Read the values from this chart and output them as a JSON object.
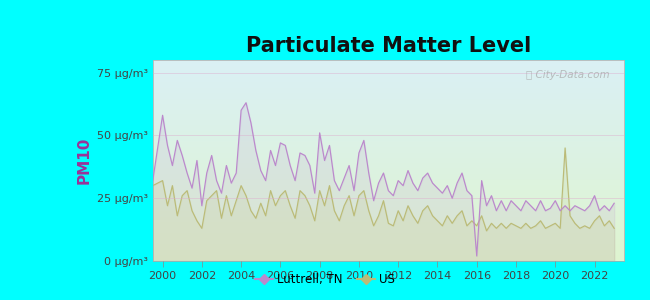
{
  "title": "Particulate Matter Level",
  "ylabel": "PM10",
  "background_outer": "#00FFFF",
  "ylim": [
    0,
    80
  ],
  "yticks": [
    0,
    25,
    50,
    75
  ],
  "ytick_labels": [
    "0 μg/m³",
    "25 μg/m³",
    "50 μg/m³",
    "75 μg/m³"
  ],
  "xlim": [
    1999.5,
    2023.5
  ],
  "xticks": [
    2000,
    2002,
    2004,
    2006,
    2008,
    2010,
    2012,
    2014,
    2016,
    2018,
    2020,
    2022
  ],
  "line1_color": "#bb88cc",
  "line2_color": "#bbbb77",
  "line1_label": "Luttrell, TN",
  "line2_label": "US",
  "title_fontsize": 15,
  "ylabel_fontsize": 11,
  "tick_fontsize": 8,
  "bg_top_color": "#daf0f5",
  "bg_bottom_color": "#dff5d0",
  "grid_color": "#cccccc",
  "luttrell_x": [
    1999.5,
    2000.0,
    2000.25,
    2000.5,
    2000.75,
    2001.0,
    2001.25,
    2001.5,
    2001.75,
    2002.0,
    2002.25,
    2002.5,
    2002.75,
    2003.0,
    2003.25,
    2003.5,
    2003.75,
    2004.0,
    2004.25,
    2004.5,
    2004.75,
    2005.0,
    2005.25,
    2005.5,
    2005.75,
    2006.0,
    2006.25,
    2006.5,
    2006.75,
    2007.0,
    2007.25,
    2007.5,
    2007.75,
    2008.0,
    2008.25,
    2008.5,
    2008.75,
    2009.0,
    2009.25,
    2009.5,
    2009.75,
    2010.0,
    2010.25,
    2010.5,
    2010.75,
    2011.0,
    2011.25,
    2011.5,
    2011.75,
    2012.0,
    2012.25,
    2012.5,
    2012.75,
    2013.0,
    2013.25,
    2013.5,
    2013.75,
    2014.0,
    2014.25,
    2014.5,
    2014.75,
    2015.0,
    2015.25,
    2015.5,
    2015.75,
    2016.0,
    2016.25,
    2016.5,
    2016.75,
    2017.0,
    2017.25,
    2017.5,
    2017.75,
    2018.0,
    2018.25,
    2018.5,
    2018.75,
    2019.0,
    2019.25,
    2019.5,
    2019.75,
    2020.0,
    2020.25,
    2020.5,
    2020.75,
    2021.0,
    2021.25,
    2021.5,
    2021.75,
    2022.0,
    2022.25,
    2022.5,
    2022.75,
    2023.0
  ],
  "luttrell_y": [
    32,
    58,
    46,
    38,
    48,
    42,
    35,
    29,
    40,
    22,
    35,
    42,
    32,
    27,
    38,
    31,
    35,
    60,
    63,
    55,
    44,
    36,
    32,
    44,
    38,
    47,
    46,
    38,
    32,
    43,
    42,
    38,
    27,
    51,
    40,
    46,
    32,
    28,
    33,
    38,
    28,
    43,
    48,
    35,
    24,
    31,
    35,
    28,
    26,
    32,
    30,
    36,
    31,
    28,
    33,
    35,
    31,
    29,
    27,
    30,
    25,
    31,
    35,
    28,
    26,
    2,
    32,
    22,
    26,
    20,
    24,
    20,
    24,
    22,
    20,
    24,
    22,
    20,
    24,
    20,
    21,
    24,
    20,
    22,
    20,
    22,
    21,
    20,
    22,
    26,
    20,
    22,
    20,
    23,
    25
  ],
  "us_x": [
    1999.5,
    2000.0,
    2000.25,
    2000.5,
    2000.75,
    2001.0,
    2001.25,
    2001.5,
    2001.75,
    2002.0,
    2002.25,
    2002.5,
    2002.75,
    2003.0,
    2003.25,
    2003.5,
    2003.75,
    2004.0,
    2004.25,
    2004.5,
    2004.75,
    2005.0,
    2005.25,
    2005.5,
    2005.75,
    2006.0,
    2006.25,
    2006.5,
    2006.75,
    2007.0,
    2007.25,
    2007.5,
    2007.75,
    2008.0,
    2008.25,
    2008.5,
    2008.75,
    2009.0,
    2009.25,
    2009.5,
    2009.75,
    2010.0,
    2010.25,
    2010.5,
    2010.75,
    2011.0,
    2011.25,
    2011.5,
    2011.75,
    2012.0,
    2012.25,
    2012.5,
    2012.75,
    2013.0,
    2013.25,
    2013.5,
    2013.75,
    2014.0,
    2014.25,
    2014.5,
    2014.75,
    2015.0,
    2015.25,
    2015.5,
    2015.75,
    2016.0,
    2016.25,
    2016.5,
    2016.75,
    2017.0,
    2017.25,
    2017.5,
    2017.75,
    2018.0,
    2018.25,
    2018.5,
    2018.75,
    2019.0,
    2019.25,
    2019.5,
    2019.75,
    2020.0,
    2020.25,
    2020.5,
    2020.75,
    2021.0,
    2021.25,
    2021.5,
    2021.75,
    2022.0,
    2022.25,
    2022.5,
    2022.75,
    2023.0
  ],
  "us_y": [
    30,
    32,
    22,
    30,
    18,
    26,
    28,
    20,
    16,
    13,
    24,
    26,
    28,
    17,
    26,
    18,
    24,
    30,
    26,
    20,
    17,
    23,
    18,
    28,
    22,
    26,
    28,
    22,
    17,
    28,
    26,
    22,
    16,
    28,
    22,
    30,
    20,
    16,
    22,
    26,
    18,
    26,
    28,
    20,
    14,
    18,
    24,
    15,
    14,
    20,
    16,
    22,
    18,
    15,
    20,
    22,
    18,
    16,
    14,
    18,
    15,
    18,
    20,
    14,
    16,
    14,
    18,
    12,
    15,
    13,
    15,
    13,
    15,
    14,
    13,
    15,
    13,
    14,
    16,
    13,
    14,
    15,
    13,
    45,
    18,
    15,
    13,
    14,
    13,
    16,
    18,
    14,
    16,
    13,
    18
  ]
}
